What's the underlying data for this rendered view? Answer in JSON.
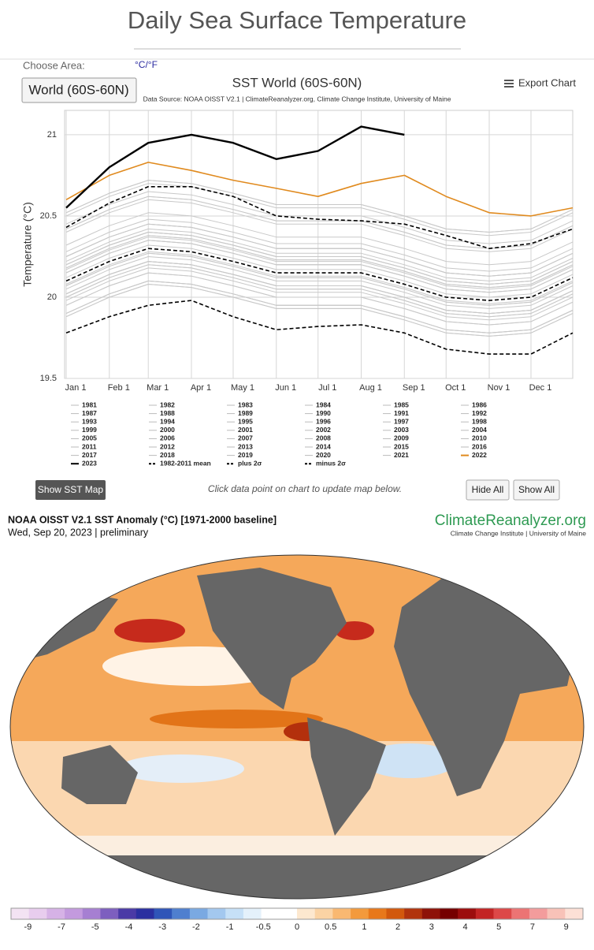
{
  "header": {
    "title": "Daily Sea Surface Temperature"
  },
  "controls": {
    "choose_area": "Choose Area:",
    "unit_toggle": "°C/°F",
    "area_button": "World (60S-60N)",
    "export": "Export Chart",
    "show_map": "Show SST Map",
    "hint": "Click data point on chart to update map below.",
    "hide_all": "Hide All",
    "show_all": "Show All"
  },
  "chart_data": {
    "type": "line",
    "title": "SST World (60S-60N)",
    "subtitle": "Data Source: NOAA OISST V2.1 | ClimateReanalyzer.org, Climate Change Institute, University of Maine",
    "y_label": "Temperature (°C)",
    "x": [
      0,
      31,
      59,
      90,
      120,
      151,
      181,
      212,
      243,
      273,
      304,
      334,
      364
    ],
    "xlim": [
      0,
      364
    ],
    "xticks": [
      {
        "value": 0,
        "label": "Jan 1"
      },
      {
        "value": 31,
        "label": "Feb 1"
      },
      {
        "value": 59,
        "label": "Mar 1"
      },
      {
        "value": 90,
        "label": "Apr 1"
      },
      {
        "value": 120,
        "label": "May 1"
      },
      {
        "value": 151,
        "label": "Jun 1"
      },
      {
        "value": 181,
        "label": "Jul 1"
      },
      {
        "value": 212,
        "label": "Aug 1"
      },
      {
        "value": 243,
        "label": "Sep 1"
      },
      {
        "value": 273,
        "label": "Oct 1"
      },
      {
        "value": 304,
        "label": "Nov 1"
      },
      {
        "value": 334,
        "label": "Dec 1"
      }
    ],
    "ylim": [
      19.5,
      21.15
    ],
    "yticks": [
      19.5,
      20,
      20.5,
      21
    ],
    "grid": true,
    "legend": "bottom",
    "series": [
      {
        "name": "1981",
        "color": "#c8c8c8",
        "values": [
          19.88,
          20.0,
          20.08,
          20.06,
          20.0,
          19.93,
          19.93,
          19.93,
          19.86,
          19.78,
          19.76,
          19.78,
          19.9
        ]
      },
      {
        "name": "1982",
        "color": "#c8c8c8",
        "values": [
          19.9,
          20.02,
          20.1,
          20.08,
          20.02,
          19.95,
          19.95,
          19.95,
          19.88,
          19.8,
          19.78,
          19.8,
          19.92
        ]
      },
      {
        "name": "1983",
        "color": "#c8c8c8",
        "values": [
          20.0,
          20.12,
          20.2,
          20.18,
          20.12,
          20.05,
          20.05,
          20.05,
          19.98,
          19.9,
          19.88,
          19.9,
          20.02
        ]
      },
      {
        "name": "1984",
        "color": "#c8c8c8",
        "values": [
          19.9,
          20.02,
          20.1,
          20.08,
          20.02,
          19.95,
          19.95,
          19.95,
          19.88,
          19.8,
          19.78,
          19.8,
          19.92
        ]
      },
      {
        "name": "1985",
        "color": "#c8c8c8",
        "values": [
          19.88,
          20.0,
          20.08,
          20.06,
          20.0,
          19.93,
          19.93,
          19.93,
          19.86,
          19.78,
          19.76,
          19.78,
          19.9
        ]
      },
      {
        "name": "1986",
        "color": "#c8c8c8",
        "values": [
          19.9,
          20.02,
          20.1,
          20.08,
          20.02,
          19.95,
          19.95,
          19.95,
          19.88,
          19.8,
          19.78,
          19.8,
          19.92
        ]
      },
      {
        "name": "1987",
        "color": "#c8c8c8",
        "values": [
          20.02,
          20.14,
          20.22,
          20.2,
          20.14,
          20.07,
          20.07,
          20.07,
          20.0,
          19.92,
          19.9,
          19.92,
          20.04
        ]
      },
      {
        "name": "1988",
        "color": "#c8c8c8",
        "values": [
          20.0,
          20.12,
          20.2,
          20.18,
          20.12,
          20.05,
          20.05,
          20.05,
          19.98,
          19.9,
          19.88,
          19.9,
          20.02
        ]
      },
      {
        "name": "1989",
        "color": "#c8c8c8",
        "values": [
          19.95,
          20.07,
          20.15,
          20.13,
          20.07,
          20.0,
          20.0,
          20.0,
          19.93,
          19.85,
          19.83,
          19.85,
          19.97
        ]
      },
      {
        "name": "1990",
        "color": "#c8c8c8",
        "values": [
          20.05,
          20.17,
          20.25,
          20.23,
          20.17,
          20.1,
          20.1,
          20.1,
          20.03,
          19.95,
          19.93,
          19.95,
          20.07
        ]
      },
      {
        "name": "1991",
        "color": "#c8c8c8",
        "values": [
          20.02,
          20.14,
          20.22,
          20.2,
          20.14,
          20.07,
          20.07,
          20.07,
          20.0,
          19.92,
          19.9,
          19.92,
          20.04
        ]
      },
      {
        "name": "1992",
        "color": "#c8c8c8",
        "values": [
          19.95,
          20.07,
          20.15,
          20.13,
          20.07,
          20.0,
          20.0,
          20.0,
          19.93,
          19.85,
          19.83,
          19.85,
          19.97
        ]
      },
      {
        "name": "1993",
        "color": "#c8c8c8",
        "values": [
          19.98,
          20.1,
          20.18,
          20.16,
          20.1,
          20.03,
          20.03,
          20.03,
          19.96,
          19.88,
          19.86,
          19.88,
          20.0
        ]
      },
      {
        "name": "1994",
        "color": "#c8c8c8",
        "values": [
          20.02,
          20.14,
          20.22,
          20.2,
          20.14,
          20.07,
          20.07,
          20.07,
          20.0,
          19.92,
          19.9,
          19.92,
          20.04
        ]
      },
      {
        "name": "1995",
        "color": "#c8c8c8",
        "values": [
          20.07,
          20.19,
          20.27,
          20.25,
          20.19,
          20.12,
          20.12,
          20.12,
          20.05,
          19.97,
          19.95,
          19.97,
          20.09
        ]
      },
      {
        "name": "1996",
        "color": "#c8c8c8",
        "values": [
          20.02,
          20.14,
          20.22,
          20.2,
          20.14,
          20.07,
          20.07,
          20.07,
          20.0,
          19.92,
          19.9,
          19.92,
          20.04
        ]
      },
      {
        "name": "1997",
        "color": "#c8c8c8",
        "values": [
          20.15,
          20.27,
          20.35,
          20.33,
          20.27,
          20.2,
          20.2,
          20.2,
          20.13,
          20.05,
          20.03,
          20.05,
          20.17
        ]
      },
      {
        "name": "1998",
        "color": "#c8c8c8",
        "values": [
          20.2,
          20.32,
          20.4,
          20.38,
          20.32,
          20.25,
          20.25,
          20.25,
          20.18,
          20.1,
          20.08,
          20.1,
          20.22
        ]
      },
      {
        "name": "1999",
        "color": "#c8c8c8",
        "values": [
          20.08,
          20.2,
          20.28,
          20.26,
          20.2,
          20.13,
          20.13,
          20.13,
          20.06,
          19.98,
          19.96,
          19.98,
          20.1
        ]
      },
      {
        "name": "2000",
        "color": "#c8c8c8",
        "values": [
          20.07,
          20.19,
          20.27,
          20.25,
          20.19,
          20.12,
          20.12,
          20.12,
          20.05,
          19.97,
          19.95,
          19.97,
          20.09
        ]
      },
      {
        "name": "2001",
        "color": "#c8c8c8",
        "values": [
          20.15,
          20.27,
          20.35,
          20.33,
          20.27,
          20.2,
          20.2,
          20.2,
          20.13,
          20.05,
          20.03,
          20.05,
          20.17
        ]
      },
      {
        "name": "2002",
        "color": "#c8c8c8",
        "values": [
          20.18,
          20.3,
          20.38,
          20.36,
          20.3,
          20.23,
          20.23,
          20.23,
          20.16,
          20.08,
          20.06,
          20.08,
          20.2
        ]
      },
      {
        "name": "2003",
        "color": "#c8c8c8",
        "values": [
          20.2,
          20.32,
          20.4,
          20.38,
          20.32,
          20.25,
          20.25,
          20.25,
          20.18,
          20.1,
          20.08,
          20.1,
          20.22
        ]
      },
      {
        "name": "2004",
        "color": "#c8c8c8",
        "values": [
          20.17,
          20.29,
          20.37,
          20.35,
          20.29,
          20.22,
          20.22,
          20.22,
          20.15,
          20.07,
          20.05,
          20.07,
          20.19
        ]
      },
      {
        "name": "2005",
        "color": "#c8c8c8",
        "values": [
          20.22,
          20.34,
          20.42,
          20.4,
          20.34,
          20.27,
          20.27,
          20.27,
          20.2,
          20.12,
          20.1,
          20.12,
          20.24
        ]
      },
      {
        "name": "2006",
        "color": "#c8c8c8",
        "values": [
          20.2,
          20.32,
          20.4,
          20.38,
          20.32,
          20.25,
          20.25,
          20.25,
          20.18,
          20.1,
          20.08,
          20.1,
          20.22
        ]
      },
      {
        "name": "2007",
        "color": "#c8c8c8",
        "values": [
          20.15,
          20.27,
          20.35,
          20.33,
          20.27,
          20.2,
          20.2,
          20.2,
          20.13,
          20.05,
          20.03,
          20.05,
          20.17
        ]
      },
      {
        "name": "2008",
        "color": "#c8c8c8",
        "values": [
          20.12,
          20.24,
          20.32,
          20.3,
          20.24,
          20.17,
          20.17,
          20.17,
          20.1,
          20.02,
          20.0,
          20.02,
          20.14
        ]
      },
      {
        "name": "2009",
        "color": "#c8c8c8",
        "values": [
          20.25,
          20.37,
          20.45,
          20.43,
          20.37,
          20.3,
          20.3,
          20.3,
          20.23,
          20.15,
          20.13,
          20.15,
          20.27
        ]
      },
      {
        "name": "2010",
        "color": "#c8c8c8",
        "values": [
          20.28,
          20.4,
          20.48,
          20.46,
          20.4,
          20.33,
          20.33,
          20.33,
          20.26,
          20.18,
          20.16,
          20.18,
          20.3
        ]
      },
      {
        "name": "2011",
        "color": "#c8c8c8",
        "values": [
          20.18,
          20.3,
          20.38,
          20.36,
          20.3,
          20.23,
          20.23,
          20.23,
          20.16,
          20.08,
          20.06,
          20.08,
          20.2
        ]
      },
      {
        "name": "2012",
        "color": "#c8c8c8",
        "values": [
          20.25,
          20.37,
          20.45,
          20.43,
          20.37,
          20.3,
          20.3,
          20.3,
          20.23,
          20.15,
          20.13,
          20.15,
          20.27
        ]
      },
      {
        "name": "2013",
        "color": "#c8c8c8",
        "values": [
          20.25,
          20.37,
          20.45,
          20.43,
          20.37,
          20.3,
          20.3,
          20.3,
          20.23,
          20.15,
          20.13,
          20.15,
          20.27
        ]
      },
      {
        "name": "2014",
        "color": "#c8c8c8",
        "values": [
          20.32,
          20.44,
          20.52,
          20.5,
          20.44,
          20.37,
          20.37,
          20.37,
          20.3,
          20.22,
          20.2,
          20.22,
          20.34
        ]
      },
      {
        "name": "2015",
        "color": "#c8c8c8",
        "values": [
          20.42,
          20.54,
          20.62,
          20.6,
          20.54,
          20.47,
          20.47,
          20.47,
          20.4,
          20.32,
          20.3,
          20.32,
          20.44
        ]
      },
      {
        "name": "2016",
        "color": "#c8c8c8",
        "values": [
          20.52,
          20.64,
          20.72,
          20.7,
          20.64,
          20.57,
          20.57,
          20.57,
          20.5,
          20.42,
          20.4,
          20.42,
          20.54
        ]
      },
      {
        "name": "2017",
        "color": "#c8c8c8",
        "values": [
          20.45,
          20.57,
          20.65,
          20.63,
          20.57,
          20.5,
          20.5,
          20.5,
          20.43,
          20.35,
          20.33,
          20.35,
          20.47
        ]
      },
      {
        "name": "2018",
        "color": "#c8c8c8",
        "values": [
          20.4,
          20.52,
          20.6,
          20.58,
          20.52,
          20.45,
          20.45,
          20.45,
          20.38,
          20.3,
          20.28,
          20.3,
          20.42
        ]
      },
      {
        "name": "2019",
        "color": "#c8c8c8",
        "values": [
          20.5,
          20.62,
          20.7,
          20.68,
          20.62,
          20.55,
          20.55,
          20.55,
          20.48,
          20.4,
          20.38,
          20.4,
          20.52
        ]
      },
      {
        "name": "2020",
        "color": "#c8c8c8",
        "values": [
          20.52,
          20.64,
          20.72,
          20.7,
          20.64,
          20.57,
          20.57,
          20.57,
          20.5,
          20.42,
          20.4,
          20.42,
          20.54
        ]
      },
      {
        "name": "2021",
        "color": "#c8c8c8",
        "values": [
          20.42,
          20.54,
          20.62,
          20.6,
          20.54,
          20.47,
          20.47,
          20.47,
          20.4,
          20.32,
          20.3,
          20.32,
          20.44
        ]
      },
      {
        "name": "2022",
        "color": "#e08a1e",
        "width": 1.6,
        "values": [
          20.6,
          20.75,
          20.83,
          20.78,
          20.72,
          20.67,
          20.62,
          20.7,
          20.75,
          20.62,
          20.52,
          20.5,
          20.55
        ]
      },
      {
        "name": "2023",
        "color": "#000000",
        "width": 2.4,
        "values": [
          20.55,
          20.8,
          20.95,
          21.0,
          20.95,
          20.85,
          20.9,
          21.05,
          21.0,
          null,
          null,
          null,
          null
        ]
      },
      {
        "name": "1982-2011 mean",
        "color": "#000000",
        "width": 1.6,
        "dashed": true,
        "values": [
          20.1,
          20.22,
          20.3,
          20.28,
          20.22,
          20.15,
          20.15,
          20.15,
          20.08,
          20.0,
          19.98,
          20.0,
          20.12
        ]
      },
      {
        "name": "plus 2σ",
        "color": "#000000",
        "width": 1.6,
        "dashed": true,
        "values": [
          20.43,
          20.58,
          20.68,
          20.68,
          20.62,
          20.5,
          20.48,
          20.47,
          20.45,
          20.38,
          20.3,
          20.33,
          20.42
        ]
      },
      {
        "name": "minus 2σ",
        "color": "#000000",
        "width": 1.6,
        "dashed": true,
        "values": [
          19.78,
          19.88,
          19.95,
          19.98,
          19.88,
          19.8,
          19.82,
          19.83,
          19.78,
          19.68,
          19.65,
          19.65,
          19.78
        ]
      }
    ]
  },
  "map": {
    "title": "NOAA OISST V2.1 SST Anomaly (°C) [1971-2000 baseline]",
    "date": "Wed, Sep 20, 2023 | preliminary",
    "brand": "ClimateReanalyzer.org",
    "brand_sub": "Climate Change Institute | University of Maine",
    "colorbar": {
      "labels": [
        -9,
        -7,
        -5,
        -4,
        -3,
        -2,
        -1,
        -0.5,
        0,
        0.5,
        1,
        2,
        3,
        4,
        5,
        7,
        9
      ],
      "colors": [
        "#f3e3f3",
        "#e8cdee",
        "#d6b2e6",
        "#c39ade",
        "#a67fd2",
        "#7d5fbf",
        "#4a3aa6",
        "#2a2fa0",
        "#2f55b8",
        "#4f7fcf",
        "#7aa9e2",
        "#a3c8ef",
        "#c6e0f7",
        "#e4f1fb",
        "#ffffff",
        "#ffffff",
        "#fde8cf",
        "#fbd3a4",
        "#f9b871",
        "#f39a3c",
        "#e8781a",
        "#d2580c",
        "#b1330c",
        "#8e1208",
        "#750000",
        "#9c0d0d",
        "#c32424",
        "#dd4848",
        "#ec7474",
        "#f39c9c",
        "#f8c2b8",
        "#fde0d6"
      ]
    }
  }
}
